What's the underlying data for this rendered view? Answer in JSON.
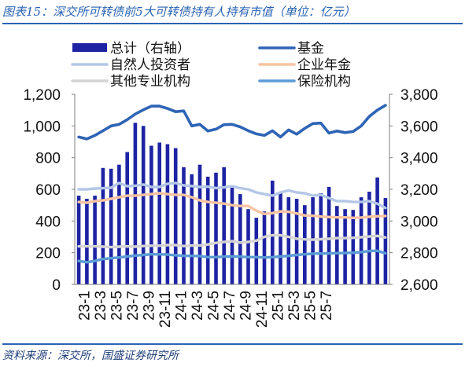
{
  "header": {
    "title": "图表15：深交所可转债前5大可转债持有人持有市值（单位：亿元）"
  },
  "footer": {
    "source": "资料来源：深交所，国盛证券研究所"
  },
  "colors": {
    "bar": "#1d23a3",
    "fund": "#2e64b5",
    "individual": "#b4c7e7",
    "annuity": "#f6c4a3",
    "other": "#d4d4d4",
    "insurance": "#5b9bd5",
    "title": "#2a63b4"
  },
  "chart_data": {
    "type": "bar+line",
    "title": "",
    "x_tick_labels": [
      "23-1",
      "23-3",
      "23-5",
      "23-7",
      "23-9",
      "23-11",
      "24-1",
      "24-3",
      "24-5",
      "24-7",
      "24-9",
      "24-11",
      "25-1",
      "25-3",
      "25-5",
      "25-7"
    ],
    "left_axis": {
      "ylim": [
        0,
        1200
      ],
      "ticks": [
        "0",
        "200",
        "400",
        "600",
        "800",
        "1,000",
        "1,200"
      ]
    },
    "right_axis": {
      "ylim": [
        2600,
        3800
      ],
      "ticks": [
        "2,600",
        "2,800",
        "3,000",
        "3,200",
        "3,400",
        "3,600",
        "3,800"
      ]
    },
    "legend": {
      "placement": "top",
      "items": [
        "总计（右轴）",
        "基金",
        "自然人投资者",
        "企业年金",
        "其他专业机构",
        "保险机构"
      ]
    },
    "bar_series": {
      "name": "总计（右轴）",
      "axis": "right",
      "values": [
        3160,
        3140,
        3160,
        3335,
        3330,
        3355,
        3435,
        3620,
        3600,
        3475,
        3495,
        3485,
        3460,
        3340,
        3295,
        3355,
        3280,
        3305,
        3340,
        3210,
        3170,
        3075,
        3020,
        3060,
        3255,
        3185,
        3150,
        3140,
        3100,
        3150,
        3175,
        3215,
        3095,
        3075,
        3070,
        3150,
        3185,
        3275,
        3145
      ],
      "note": ""
    },
    "series": [
      {
        "name": "基金",
        "axis": "left",
        "values": [
          930,
          918,
          940,
          970,
          1000,
          1010,
          1040,
          1075,
          1102,
          1125,
          1125,
          1110,
          1090,
          1095,
          1000,
          1010,
          968,
          980,
          1008,
          1010,
          994,
          970,
          950,
          940,
          970,
          930,
          975,
          948,
          985,
          1015,
          1018,
          955,
          968,
          958,
          965,
          1000,
          1060,
          1100,
          1130
        ]
      },
      {
        "name": "自然人投资者",
        "axis": "left",
        "values": [
          600,
          600,
          605,
          607,
          610,
          640,
          620,
          623,
          630,
          615,
          615,
          635,
          640,
          625,
          621,
          615,
          617,
          608,
          613,
          620,
          607,
          600,
          580,
          570,
          560,
          580,
          593,
          580,
          575,
          560,
          565,
          545,
          525,
          525,
          520,
          520,
          525,
          510,
          482
        ]
      },
      {
        "name": "企业年金",
        "axis": "left",
        "values": [
          520,
          515,
          525,
          530,
          540,
          550,
          560,
          560,
          565,
          570,
          575,
          570,
          565,
          565,
          550,
          530,
          520,
          515,
          510,
          500,
          495,
          495,
          465,
          445,
          450,
          460,
          458,
          448,
          435,
          433,
          428,
          425,
          423,
          423,
          420,
          422,
          427,
          430,
          432
        ]
      },
      {
        "name": "其他专业机构",
        "axis": "left",
        "values": [
          240,
          240,
          240,
          238,
          235,
          238,
          240,
          238,
          242,
          244,
          244,
          248,
          248,
          242,
          245,
          246,
          252,
          262,
          268,
          272,
          264,
          268,
          276,
          300,
          310,
          310,
          300,
          288,
          284,
          282,
          285,
          288,
          292,
          292,
          294,
          298,
          302,
          306,
          296
        ]
      },
      {
        "name": "保险机构",
        "axis": "left",
        "values": [
          148,
          140,
          148,
          160,
          165,
          170,
          176,
          182,
          186,
          190,
          190,
          188,
          184,
          180,
          180,
          178,
          172,
          172,
          175,
          176,
          175,
          172,
          172,
          170,
          172,
          176,
          180,
          186,
          190,
          194,
          195,
          196,
          197,
          198,
          200,
          204,
          210,
          212,
          196
        ]
      }
    ]
  }
}
